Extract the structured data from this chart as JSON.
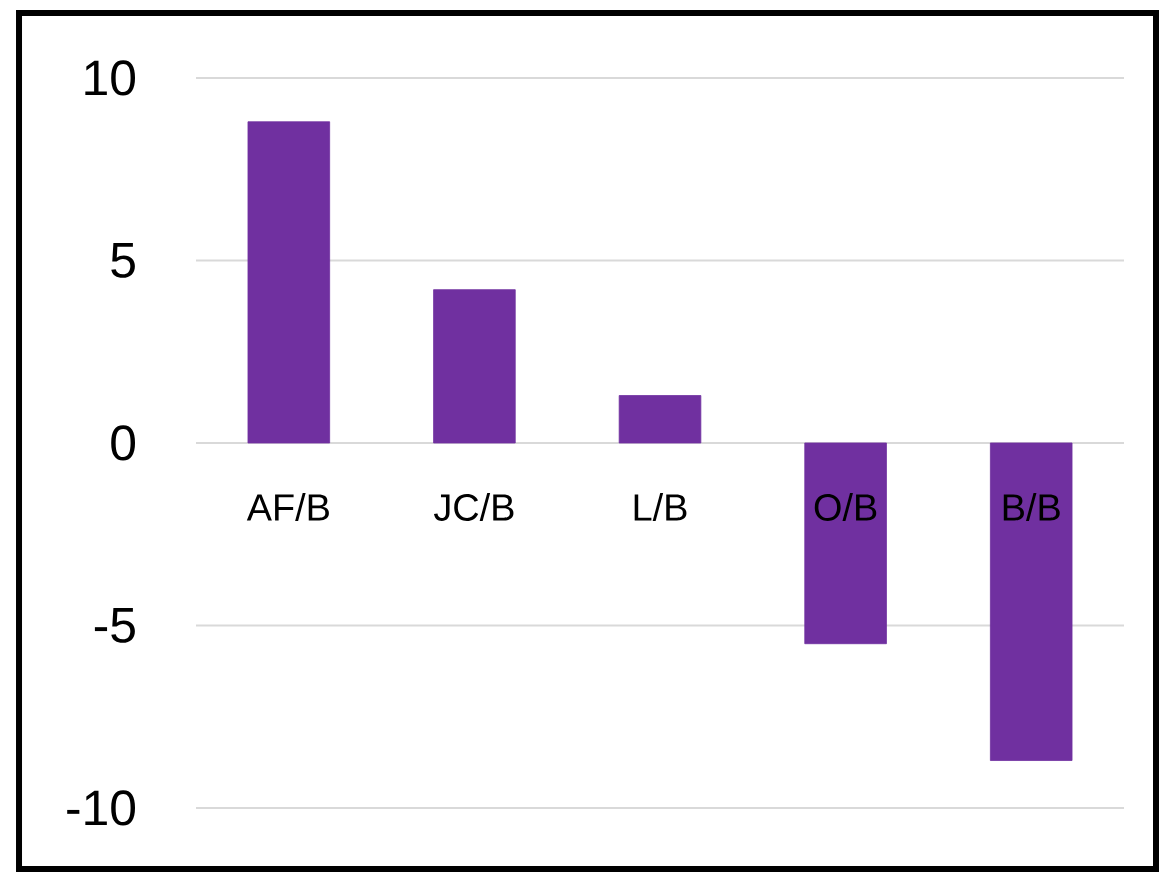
{
  "chart_data": {
    "type": "bar",
    "categories": [
      "AF/B",
      "JC/B",
      "L/B",
      "O/B",
      "B/B"
    ],
    "values": [
      8.8,
      4.2,
      1.3,
      -5.5,
      -8.7
    ],
    "color": "#7030a0",
    "ylim": [
      -10,
      10
    ],
    "yticks": [
      -10,
      -5,
      0,
      5,
      10
    ],
    "grid": "y"
  }
}
